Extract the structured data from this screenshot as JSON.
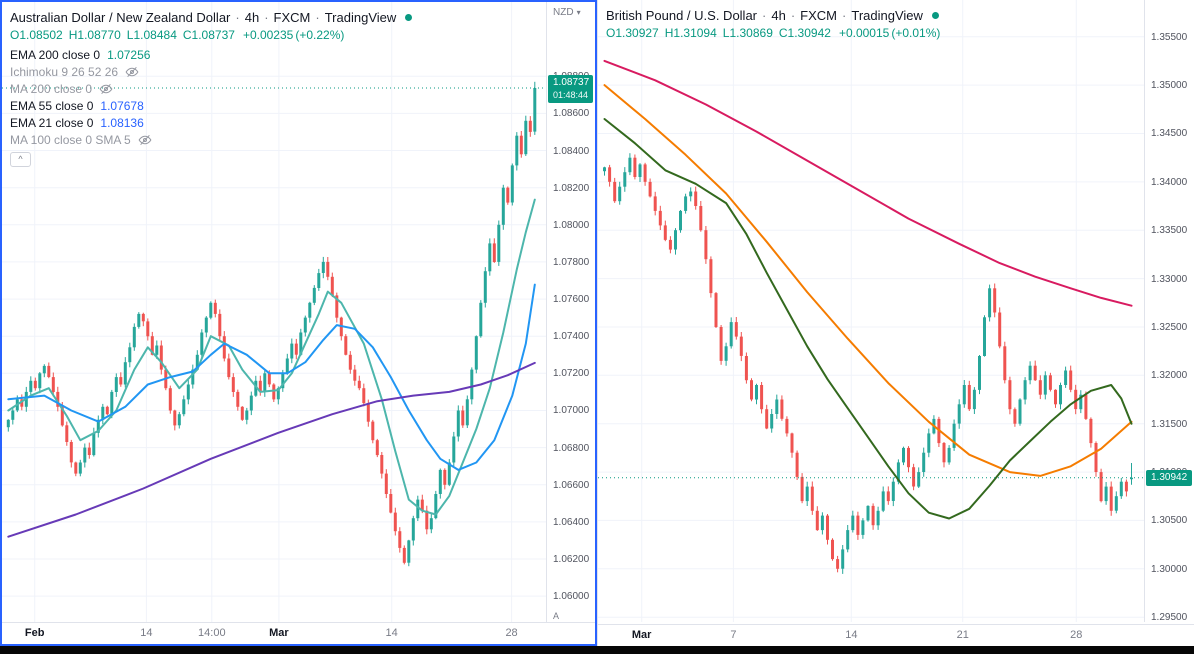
{
  "left_panel": {
    "header": {
      "symbol": "Australian Dollar / New Zealand Dollar",
      "separator": "·",
      "interval": "4h",
      "exchange": "FXCM",
      "brand": "TradingView"
    },
    "ohlc": {
      "o_label": "O",
      "o": "1.08502",
      "h_label": "H",
      "h": "1.08770",
      "l_label": "L",
      "l": "1.08484",
      "c_label": "C",
      "c": "1.08737",
      "change": "+0.00235",
      "change_pct": "(+0.22%)"
    },
    "legend": [
      {
        "label": "EMA 200 close 0",
        "value": "1.07256"
      },
      {
        "label": "Ichimoku 9 26 52 26",
        "hidden": true
      },
      {
        "label": "MA 200 close 0",
        "hidden": true
      },
      {
        "label": "EMA 55 close 0",
        "value": "1.07678"
      },
      {
        "label": "EMA 21 close 0",
        "value": "1.08136"
      },
      {
        "label": "MA 100 close 0 SMA 5",
        "hidden": true
      }
    ],
    "collapse_glyph": "^",
    "axis": {
      "currency": "NZD",
      "caret": "▾",
      "auto_label": "A",
      "badge_price": "1.08737",
      "badge_countdown": "01:48:44"
    }
  },
  "right_panel": {
    "header": {
      "symbol": "British Pound / U.S. Dollar",
      "separator": "·",
      "interval": "4h",
      "exchange": "FXCM",
      "brand": "TradingView"
    },
    "ohlc": {
      "o_label": "O",
      "o": "1.30927",
      "h_label": "H",
      "h": "1.31094",
      "l_label": "L",
      "l": "1.30869",
      "c_label": "C",
      "c": "1.30942",
      "change": "+0.00015",
      "change_pct": "(+0.01%)"
    },
    "axis": {
      "badge_price": "1.30942"
    }
  },
  "colors": {
    "accent_teal": "#089981",
    "up": "#26a69a",
    "down": "#ef5350",
    "selection_border": "#2962ff"
  },
  "chart_data": [
    {
      "type": "candlestick",
      "title": "Australian Dollar / New Zealand Dollar",
      "interval": "4h",
      "exchange": "FXCM",
      "last_price": 1.08737,
      "ohlc_last": {
        "open": 1.08502,
        "high": 1.0877,
        "low": 1.08484,
        "close": 1.08737,
        "change": 0.00235,
        "change_pct": 0.22
      },
      "up_color": "#26a69a",
      "down_color": "#ef5350",
      "accent": "#089981",
      "y_axis": {
        "min": 1.0585,
        "max": 1.092,
        "ticks": [
          1.088,
          1.086,
          1.084,
          1.082,
          1.08,
          1.078,
          1.076,
          1.074,
          1.072,
          1.07,
          1.068,
          1.066,
          1.064,
          1.062,
          1.06
        ]
      },
      "x_labels": [
        {
          "label": "Feb",
          "pos": 0.06,
          "major": true
        },
        {
          "label": "14",
          "pos": 0.265
        },
        {
          "label": "14:00",
          "pos": 0.385
        },
        {
          "label": "Mar",
          "pos": 0.508,
          "major": true
        },
        {
          "label": "14",
          "pos": 0.715
        },
        {
          "label": "28",
          "pos": 0.935
        }
      ],
      "closes": [
        1.0695,
        1.07,
        1.0706,
        1.0702,
        1.071,
        1.0716,
        1.0712,
        1.072,
        1.0724,
        1.0718,
        1.071,
        1.0702,
        1.0692,
        1.0683,
        1.0672,
        1.0666,
        1.0672,
        1.068,
        1.0676,
        1.0688,
        1.0695,
        1.0702,
        1.0698,
        1.071,
        1.0718,
        1.0714,
        1.0726,
        1.0734,
        1.0745,
        1.0752,
        1.0748,
        1.074,
        1.073,
        1.0735,
        1.0722,
        1.0712,
        1.07,
        1.0692,
        1.0698,
        1.0706,
        1.0714,
        1.0722,
        1.073,
        1.0742,
        1.075,
        1.0758,
        1.0752,
        1.074,
        1.0728,
        1.0718,
        1.071,
        1.0702,
        1.0695,
        1.07,
        1.0708,
        1.0716,
        1.071,
        1.072,
        1.0714,
        1.0706,
        1.0712,
        1.072,
        1.0728,
        1.0736,
        1.073,
        1.0742,
        1.075,
        1.0758,
        1.0766,
        1.0774,
        1.078,
        1.0772,
        1.0762,
        1.075,
        1.074,
        1.073,
        1.0722,
        1.0716,
        1.0712,
        1.0704,
        1.0694,
        1.0684,
        1.0676,
        1.0666,
        1.0655,
        1.0645,
        1.0635,
        1.0626,
        1.0618,
        1.063,
        1.0642,
        1.0652,
        1.0646,
        1.0636,
        1.0642,
        1.0655,
        1.0668,
        1.066,
        1.0672,
        1.0686,
        1.07,
        1.0692,
        1.0706,
        1.0722,
        1.074,
        1.0758,
        1.0775,
        1.079,
        1.078,
        1.08,
        1.082,
        1.0812,
        1.0832,
        1.0848,
        1.0838,
        1.0856,
        1.085,
        1.08737
      ],
      "overlays": [
        {
          "name": "EMA 21",
          "color": "#4db6ac",
          "points": [
            [
              0,
              1.07
            ],
            [
              5,
              1.0708
            ],
            [
              9,
              1.0712
            ],
            [
              13,
              1.0697
            ],
            [
              16,
              1.0684
            ],
            [
              20,
              1.0689
            ],
            [
              24,
              1.07
            ],
            [
              28,
              1.0722
            ],
            [
              31,
              1.0734
            ],
            [
              34,
              1.0726
            ],
            [
              38,
              1.0712
            ],
            [
              42,
              1.0722
            ],
            [
              45,
              1.074
            ],
            [
              49,
              1.0735
            ],
            [
              52,
              1.0722
            ],
            [
              56,
              1.071
            ],
            [
              60,
              1.0711
            ],
            [
              63,
              1.072
            ],
            [
              66,
              1.0736
            ],
            [
              69,
              1.0752
            ],
            [
              71,
              1.0764
            ],
            [
              74,
              1.0758
            ],
            [
              79,
              1.0736
            ],
            [
              83,
              1.0706
            ],
            [
              86,
              1.0678
            ],
            [
              89,
              1.0652
            ],
            [
              92,
              1.0646
            ],
            [
              95,
              1.0644
            ],
            [
              98,
              1.0654
            ],
            [
              101,
              1.0672
            ],
            [
              104,
              1.069
            ],
            [
              107,
              1.0712
            ],
            [
              110,
              1.0742
            ],
            [
              113,
              1.0776
            ],
            [
              115,
              1.0796
            ],
            [
              117,
              1.08136
            ]
          ]
        },
        {
          "name": "EMA 55",
          "color": "#2196f3",
          "points": [
            [
              0,
              1.0706
            ],
            [
              8,
              1.0708
            ],
            [
              14,
              1.07
            ],
            [
              20,
              1.0694
            ],
            [
              26,
              1.0702
            ],
            [
              31,
              1.0714
            ],
            [
              36,
              1.0718
            ],
            [
              41,
              1.0721
            ],
            [
              45,
              1.073
            ],
            [
              48,
              1.0736
            ],
            [
              53,
              1.073
            ],
            [
              58,
              1.072
            ],
            [
              62,
              1.072
            ],
            [
              66,
              1.0726
            ],
            [
              70,
              1.0738
            ],
            [
              73,
              1.0746
            ],
            [
              77,
              1.0744
            ],
            [
              81,
              1.0734
            ],
            [
              85,
              1.0718
            ],
            [
              89,
              1.07
            ],
            [
              93,
              1.0684
            ],
            [
              96,
              1.0674
            ],
            [
              100,
              1.0668
            ],
            [
              104,
              1.0672
            ],
            [
              108,
              1.0684
            ],
            [
              112,
              1.0708
            ],
            [
              115,
              1.0736
            ],
            [
              117,
              1.07678
            ]
          ]
        },
        {
          "name": "EMA 200",
          "color": "#673ab7",
          "points": [
            [
              0,
              1.0632
            ],
            [
              15,
              1.0644
            ],
            [
              30,
              1.0658
            ],
            [
              45,
              1.0674
            ],
            [
              60,
              1.0688
            ],
            [
              72,
              1.0698
            ],
            [
              82,
              1.0705
            ],
            [
              90,
              1.0708
            ],
            [
              98,
              1.071
            ],
            [
              105,
              1.0714
            ],
            [
              111,
              1.0719
            ],
            [
              117,
              1.07256
            ]
          ]
        }
      ]
    },
    {
      "type": "candlestick",
      "title": "British Pound / U.S. Dollar",
      "interval": "4h",
      "exchange": "FXCM",
      "last_price": 1.30942,
      "ohlc_last": {
        "open": 1.30927,
        "high": 1.31094,
        "low": 1.30869,
        "close": 1.30942,
        "change": 0.00015,
        "change_pct": 0.01
      },
      "up_color": "#26a69a",
      "down_color": "#ef5350",
      "accent": "#089981",
      "y_axis": {
        "min": 1.2945,
        "max": 1.3588,
        "ticks": [
          1.355,
          1.35,
          1.345,
          1.34,
          1.335,
          1.33,
          1.325,
          1.32,
          1.315,
          1.31,
          1.305,
          1.3,
          1.295
        ]
      },
      "x_labels": [
        {
          "label": "Mar",
          "pos": 0.08,
          "major": true
        },
        {
          "label": "7",
          "pos": 0.248
        },
        {
          "label": "14",
          "pos": 0.464
        },
        {
          "label": "21",
          "pos": 0.668
        },
        {
          "label": "28",
          "pos": 0.876
        }
      ],
      "closes": [
        1.3415,
        1.34,
        1.338,
        1.3395,
        1.341,
        1.3425,
        1.3405,
        1.3418,
        1.34,
        1.3385,
        1.337,
        1.3355,
        1.334,
        1.333,
        1.335,
        1.337,
        1.3385,
        1.339,
        1.3375,
        1.335,
        1.332,
        1.3285,
        1.325,
        1.3215,
        1.323,
        1.3255,
        1.324,
        1.322,
        1.3195,
        1.3175,
        1.319,
        1.3165,
        1.3145,
        1.316,
        1.3175,
        1.3155,
        1.314,
        1.312,
        1.3095,
        1.307,
        1.3085,
        1.306,
        1.304,
        1.3055,
        1.303,
        1.301,
        1.3,
        1.302,
        1.304,
        1.3055,
        1.3035,
        1.305,
        1.3065,
        1.3045,
        1.306,
        1.308,
        1.307,
        1.309,
        1.311,
        1.3125,
        1.3105,
        1.3085,
        1.31,
        1.312,
        1.314,
        1.3155,
        1.313,
        1.311,
        1.3125,
        1.315,
        1.317,
        1.319,
        1.3165,
        1.3185,
        1.322,
        1.326,
        1.329,
        1.3265,
        1.323,
        1.3195,
        1.3165,
        1.315,
        1.3175,
        1.3195,
        1.321,
        1.3195,
        1.318,
        1.32,
        1.3185,
        1.317,
        1.319,
        1.3205,
        1.3185,
        1.3165,
        1.318,
        1.3155,
        1.313,
        1.31,
        1.307,
        1.3085,
        1.306,
        1.3075,
        1.309,
        1.308,
        1.30942
      ],
      "overlays": [
        {
          "name": "MA 200",
          "color": "#d81b60",
          "points": [
            [
              0,
              1.3525
            ],
            [
              10,
              1.3505
            ],
            [
              20,
              1.348
            ],
            [
              30,
              1.3452
            ],
            [
              40,
              1.3422
            ],
            [
              50,
              1.3392
            ],
            [
              60,
              1.3362
            ],
            [
              70,
              1.3336
            ],
            [
              78,
              1.3316
            ],
            [
              85,
              1.3302
            ],
            [
              92,
              1.329
            ],
            [
              98,
              1.328
            ],
            [
              104,
              1.3272
            ]
          ]
        },
        {
          "name": "MA 100",
          "color": "#f57c00",
          "points": [
            [
              0,
              1.35
            ],
            [
              8,
              1.3465
            ],
            [
              16,
              1.3428
            ],
            [
              24,
              1.3388
            ],
            [
              32,
              1.3338
            ],
            [
              40,
              1.3286
            ],
            [
              48,
              1.3238
            ],
            [
              56,
              1.3192
            ],
            [
              64,
              1.3152
            ],
            [
              72,
              1.3118
            ],
            [
              80,
              1.31
            ],
            [
              86,
              1.3096
            ],
            [
              92,
              1.3106
            ],
            [
              98,
              1.3124
            ],
            [
              104,
              1.3152
            ]
          ]
        },
        {
          "name": "EMA 55",
          "color": "#33691e",
          "points": [
            [
              0,
              1.3465
            ],
            [
              6,
              1.344
            ],
            [
              12,
              1.3412
            ],
            [
              18,
              1.3398
            ],
            [
              24,
              1.3378
            ],
            [
              28,
              1.3346
            ],
            [
              32,
              1.3306
            ],
            [
              36,
              1.3268
            ],
            [
              40,
              1.323
            ],
            [
              44,
              1.3196
            ],
            [
              48,
              1.3166
            ],
            [
              52,
              1.3136
            ],
            [
              56,
              1.3106
            ],
            [
              60,
              1.3078
            ],
            [
              64,
              1.3058
            ],
            [
              68,
              1.3052
            ],
            [
              72,
              1.3062
            ],
            [
              76,
              1.3086
            ],
            [
              80,
              1.3112
            ],
            [
              84,
              1.3132
            ],
            [
              88,
              1.3152
            ],
            [
              92,
              1.317
            ],
            [
              96,
              1.3184
            ],
            [
              100,
              1.319
            ],
            [
              102,
              1.3176
            ],
            [
              104,
              1.315
            ]
          ]
        }
      ]
    }
  ]
}
